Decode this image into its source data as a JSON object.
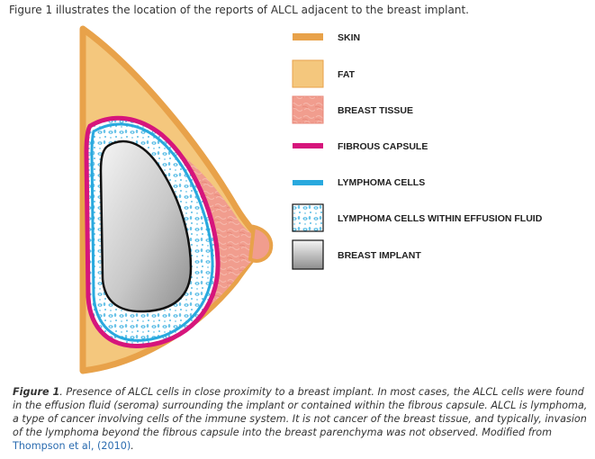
{
  "header": {
    "text": "Figure 1 illustrates the location of the reports of ALCL adjacent to the breast implant."
  },
  "legend": {
    "items": [
      {
        "id": "skin",
        "label": "SKIN"
      },
      {
        "id": "fat",
        "label": "FAT"
      },
      {
        "id": "breast-tissue",
        "label": "BREAST TISSUE"
      },
      {
        "id": "fibrous-capsule",
        "label": "FIBROUS CAPSULE"
      },
      {
        "id": "lymphoma-cells",
        "label": "LYMPHOMA CELLS"
      },
      {
        "id": "lymphoma-effusion",
        "label": "LYMPHOMA CELLS WITHIN EFFUSION FLUID"
      },
      {
        "id": "breast-implant",
        "label": "BREAST IMPLANT"
      }
    ]
  },
  "colors": {
    "skin": "#e8a24a",
    "fat": "#f4c77d",
    "breast_tissue": "#f19d8e",
    "fibrous_capsule": "#d6157c",
    "lymphoma": "#29a9de",
    "implant_light": "#f2f2f2",
    "implant_dark": "#9a9a9a"
  },
  "caption": {
    "label": "Figure 1",
    "text": ". Presence of ALCL cells in close proximity to a breast implant. In most cases, the ALCL cells were found in the effusion fluid (seroma) surrounding the implant or contained within the fibrous capsule. ALCL is lymphoma, a type of cancer involving cells of the immune system. It is not cancer of the breast tissue, and typically, invasion of the lymphoma beyond the fibrous capsule into the breast parenchyma was not observed. Modified from ",
    "link": "Thompson et al, (2010)",
    "end": "."
  }
}
